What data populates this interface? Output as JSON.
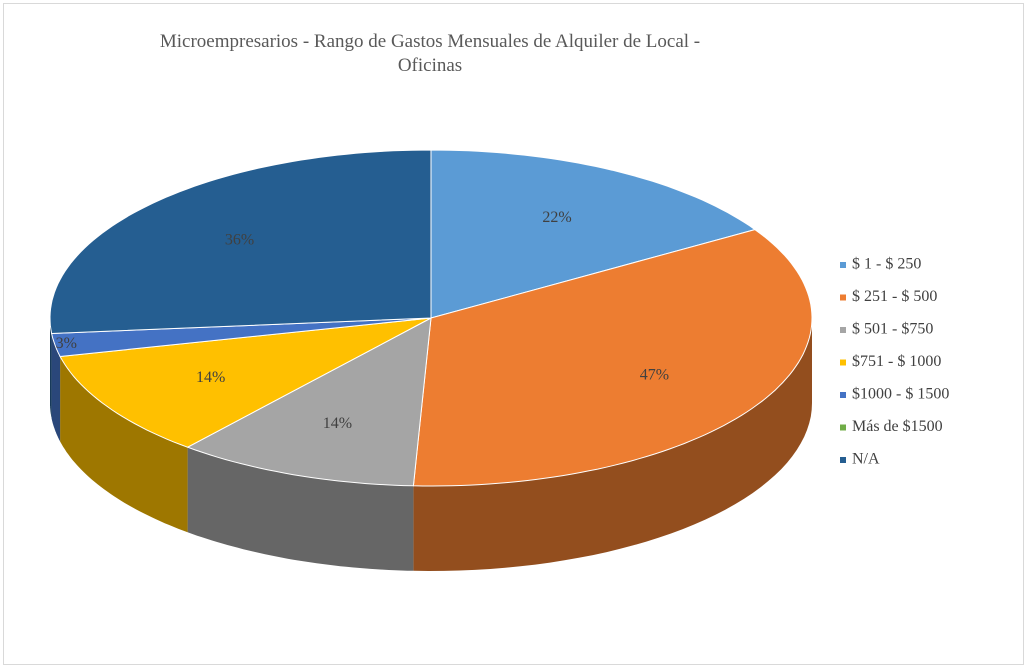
{
  "chart_data": {
    "type": "pie",
    "title": "Microempresarios - Rango de Gastos Mensuales de Alquiler de Local - Oficinas",
    "categories": [
      "$ 1 - $ 250",
      "$ 251 - $ 500",
      "$ 501 - $750",
      "$751 - $ 1000",
      "$1000 - $ 1500",
      "Más de $1500",
      "N/A"
    ],
    "values": [
      22,
      47,
      14,
      14,
      3,
      0,
      36
    ],
    "value_labels": [
      "22%",
      "47%",
      "14%",
      "14%",
      "3%",
      null,
      "36%"
    ],
    "colors": [
      "#5b9bd5",
      "#ed7d31",
      "#a5a5a5",
      "#ffc000",
      "#4472c4",
      "#70ad47",
      "#255e91"
    ],
    "legend": "right"
  }
}
